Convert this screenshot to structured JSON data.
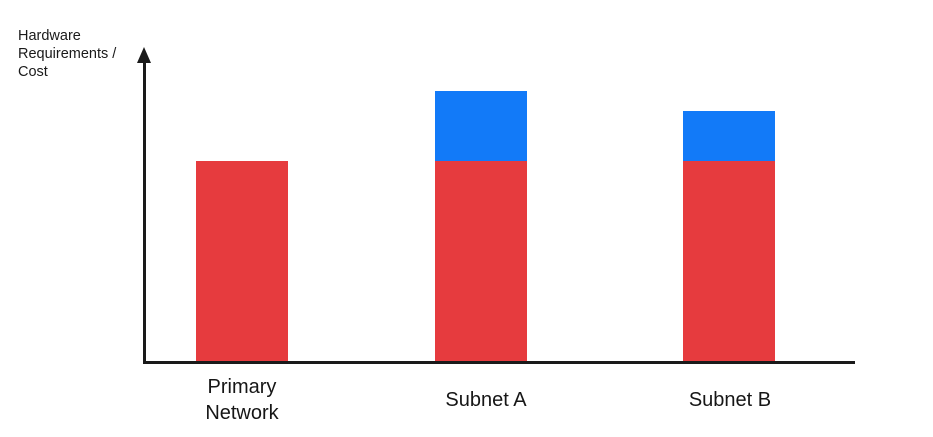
{
  "chart_data": {
    "type": "bar",
    "stacked": true,
    "title": "",
    "xlabel": "",
    "ylabel": "Hardware Requirements /\nCost",
    "ylabel_display": "Hardware\nRequirements /\nCost",
    "categories": [
      "Primary Network",
      "Subnet A",
      "Subnet B"
    ],
    "series": [
      {
        "name": "red-segment",
        "color": "#E63B3E",
        "values": [
          100,
          100,
          100
        ]
      },
      {
        "name": "blue-segment",
        "color": "#127AF8",
        "values": [
          0,
          35,
          25
        ]
      }
    ],
    "totals": [
      100,
      135,
      125
    ],
    "ylim": [
      0,
      155
    ],
    "y_tick_labels": [],
    "x_tick_labels": [
      "Primary Network",
      "Subnet A",
      "Subnet B"
    ],
    "grid": false,
    "legend": "none",
    "axis_color": "#1a1a1a",
    "axis_arrow": "y-axis-top"
  }
}
